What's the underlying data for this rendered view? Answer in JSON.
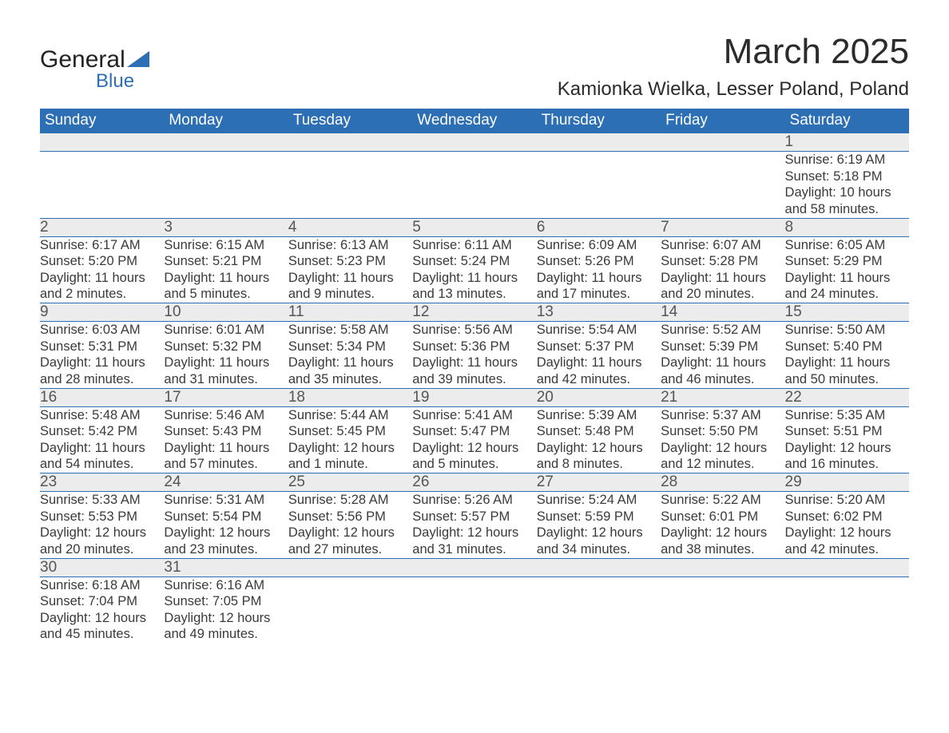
{
  "logo": {
    "text_top": "General",
    "text_bottom": "Blue",
    "brand_color": "#2d6fb5"
  },
  "title": "March 2025",
  "location": "Kamionka Wielka, Lesser Poland, Poland",
  "header_bg": "#2d6fb5",
  "header_fg": "#ffffff",
  "daynum_bg": "#ececec",
  "border_color": "#2d6fb5",
  "text_color": "#3a3a3a",
  "columns": [
    "Sunday",
    "Monday",
    "Tuesday",
    "Wednesday",
    "Thursday",
    "Friday",
    "Saturday"
  ],
  "weeks": [
    [
      null,
      null,
      null,
      null,
      null,
      null,
      {
        "n": "1",
        "sr": "6:19 AM",
        "ss": "5:18 PM",
        "dl": "10 hours and 58 minutes."
      }
    ],
    [
      {
        "n": "2",
        "sr": "6:17 AM",
        "ss": "5:20 PM",
        "dl": "11 hours and 2 minutes."
      },
      {
        "n": "3",
        "sr": "6:15 AM",
        "ss": "5:21 PM",
        "dl": "11 hours and 5 minutes."
      },
      {
        "n": "4",
        "sr": "6:13 AM",
        "ss": "5:23 PM",
        "dl": "11 hours and 9 minutes."
      },
      {
        "n": "5",
        "sr": "6:11 AM",
        "ss": "5:24 PM",
        "dl": "11 hours and 13 minutes."
      },
      {
        "n": "6",
        "sr": "6:09 AM",
        "ss": "5:26 PM",
        "dl": "11 hours and 17 minutes."
      },
      {
        "n": "7",
        "sr": "6:07 AM",
        "ss": "5:28 PM",
        "dl": "11 hours and 20 minutes."
      },
      {
        "n": "8",
        "sr": "6:05 AM",
        "ss": "5:29 PM",
        "dl": "11 hours and 24 minutes."
      }
    ],
    [
      {
        "n": "9",
        "sr": "6:03 AM",
        "ss": "5:31 PM",
        "dl": "11 hours and 28 minutes."
      },
      {
        "n": "10",
        "sr": "6:01 AM",
        "ss": "5:32 PM",
        "dl": "11 hours and 31 minutes."
      },
      {
        "n": "11",
        "sr": "5:58 AM",
        "ss": "5:34 PM",
        "dl": "11 hours and 35 minutes."
      },
      {
        "n": "12",
        "sr": "5:56 AM",
        "ss": "5:36 PM",
        "dl": "11 hours and 39 minutes."
      },
      {
        "n": "13",
        "sr": "5:54 AM",
        "ss": "5:37 PM",
        "dl": "11 hours and 42 minutes."
      },
      {
        "n": "14",
        "sr": "5:52 AM",
        "ss": "5:39 PM",
        "dl": "11 hours and 46 minutes."
      },
      {
        "n": "15",
        "sr": "5:50 AM",
        "ss": "5:40 PM",
        "dl": "11 hours and 50 minutes."
      }
    ],
    [
      {
        "n": "16",
        "sr": "5:48 AM",
        "ss": "5:42 PM",
        "dl": "11 hours and 54 minutes."
      },
      {
        "n": "17",
        "sr": "5:46 AM",
        "ss": "5:43 PM",
        "dl": "11 hours and 57 minutes."
      },
      {
        "n": "18",
        "sr": "5:44 AM",
        "ss": "5:45 PM",
        "dl": "12 hours and 1 minute."
      },
      {
        "n": "19",
        "sr": "5:41 AM",
        "ss": "5:47 PM",
        "dl": "12 hours and 5 minutes."
      },
      {
        "n": "20",
        "sr": "5:39 AM",
        "ss": "5:48 PM",
        "dl": "12 hours and 8 minutes."
      },
      {
        "n": "21",
        "sr": "5:37 AM",
        "ss": "5:50 PM",
        "dl": "12 hours and 12 minutes."
      },
      {
        "n": "22",
        "sr": "5:35 AM",
        "ss": "5:51 PM",
        "dl": "12 hours and 16 minutes."
      }
    ],
    [
      {
        "n": "23",
        "sr": "5:33 AM",
        "ss": "5:53 PM",
        "dl": "12 hours and 20 minutes."
      },
      {
        "n": "24",
        "sr": "5:31 AM",
        "ss": "5:54 PM",
        "dl": "12 hours and 23 minutes."
      },
      {
        "n": "25",
        "sr": "5:28 AM",
        "ss": "5:56 PM",
        "dl": "12 hours and 27 minutes."
      },
      {
        "n": "26",
        "sr": "5:26 AM",
        "ss": "5:57 PM",
        "dl": "12 hours and 31 minutes."
      },
      {
        "n": "27",
        "sr": "5:24 AM",
        "ss": "5:59 PM",
        "dl": "12 hours and 34 minutes."
      },
      {
        "n": "28",
        "sr": "5:22 AM",
        "ss": "6:01 PM",
        "dl": "12 hours and 38 minutes."
      },
      {
        "n": "29",
        "sr": "5:20 AM",
        "ss": "6:02 PM",
        "dl": "12 hours and 42 minutes."
      }
    ],
    [
      {
        "n": "30",
        "sr": "6:18 AM",
        "ss": "7:04 PM",
        "dl": "12 hours and 45 minutes."
      },
      {
        "n": "31",
        "sr": "6:16 AM",
        "ss": "7:05 PM",
        "dl": "12 hours and 49 minutes."
      },
      null,
      null,
      null,
      null,
      null
    ]
  ],
  "labels": {
    "sunrise": "Sunrise: ",
    "sunset": "Sunset: ",
    "daylight": "Daylight: "
  }
}
